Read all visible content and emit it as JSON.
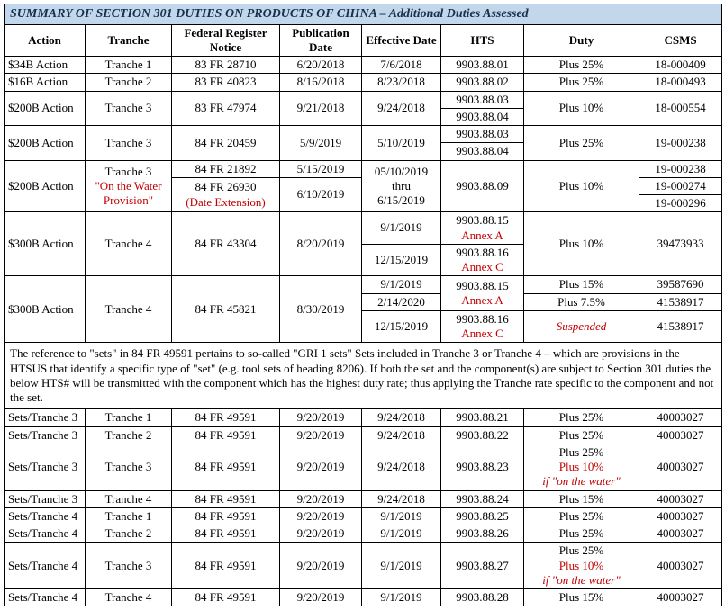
{
  "title": "SUMMARY OF SECTION 301 DUTIES ON PRODUCTS OF CHINA – Additional Duties Assessed",
  "headers": {
    "action": "Action",
    "tranche": "Tranche",
    "frn": "Federal Register Notice",
    "pub": "Publication Date",
    "eff": "Effective Date",
    "hts": "HTS",
    "duty": "Duty",
    "csms": "CSMS"
  },
  "r1": {
    "action": "$34B Action",
    "tranche": "Tranche 1",
    "frn": "83 FR 28710",
    "pub": "6/20/2018",
    "eff": "7/6/2018",
    "hts": "9903.88.01",
    "duty": "Plus 25%",
    "csms": "18-000409"
  },
  "r2": {
    "action": "$16B Action",
    "tranche": "Tranche 2",
    "frn": "83 FR 40823",
    "pub": "8/16/2018",
    "eff": "8/23/2018",
    "hts": "9903.88.02",
    "duty": "Plus 25%",
    "csms": "18-000493"
  },
  "r3": {
    "action": "$200B Action",
    "tranche": "Tranche 3",
    "frn": "83 FR 47974",
    "pub": "9/21/2018",
    "eff": "9/24/2018",
    "hts1": "9903.88.03",
    "hts2": "9903.88.04",
    "duty": "Plus 10%",
    "csms": "18-000554"
  },
  "r4": {
    "action": "$200B Action",
    "tranche": "Tranche 3",
    "frn": "84 FR 20459",
    "pub": "5/9/2019",
    "eff": "5/10/2019",
    "hts1": "9903.88.03",
    "hts2": "9903.88.04",
    "duty": "Plus 25%",
    "csms": "19-000238"
  },
  "r5": {
    "action": "$200B Action",
    "tranche_line1": "Tranche 3",
    "tranche_line2": "\"On the Water Provision\"",
    "frn1": "84 FR 21892",
    "pub1": "5/15/2019",
    "frn2a": "84 FR 26930",
    "frn2b": "(Date Extension)",
    "pub2": "6/10/2019",
    "eff_a": "05/10/2019",
    "eff_b": "thru",
    "eff_c": "6/15/2019",
    "hts": "9903.88.09",
    "duty": "Plus 10%",
    "csms1": "19-000238",
    "csms2": "19-000274",
    "csms3": "19-000296"
  },
  "r6": {
    "action": "$300B Action",
    "tranche": "Tranche 4",
    "frn": "84 FR 43304",
    "pub": "8/20/2019",
    "eff1": "9/1/2019",
    "hts1a": "9903.88.15",
    "hts1b": "Annex A",
    "eff2": "12/15/2019",
    "hts2a": "9903.88.16",
    "hts2b": "Annex C",
    "duty": "Plus 10%",
    "csms": "39473933"
  },
  "r7": {
    "action": "$300B Action",
    "tranche": "Tranche 4",
    "frn": "84 FR 45821",
    "pub": "8/30/2019",
    "eff1": "9/1/2019",
    "hts1a": "9903.88.15",
    "hts1b": "Annex A",
    "duty1": "Plus 15%",
    "csms1": "39587690",
    "eff2": "2/14/2020",
    "duty2": "Plus 7.5%",
    "csms2": "41538917",
    "eff3": "12/15/2019",
    "hts3a": "9903.88.16",
    "hts3b": "Annex C",
    "duty3": "Suspended",
    "csms3": "41538917"
  },
  "note": "The reference to \"sets\" in 84 FR 49591 pertains to so-called \"GRI 1 sets\" Sets included in Tranche 3 or Tranche 4 – which are provisions in the HTSUS that identify a specific type of \"set\" (e.g. tool sets of heading 8206).  If both the set and the component(s) are subject to Section 301 duties the below HTS# will be transmitted with the component which has the highest duty rate; thus applying the Tranche rate specific to the component and not the set.",
  "s1": {
    "action": "Sets/Tranche 3",
    "tranche": "Tranche 1",
    "frn": "84 FR 49591",
    "pub": "9/20/2019",
    "eff": "9/24/2018",
    "hts": "9903.88.21",
    "duty": "Plus 25%",
    "csms": "40003027"
  },
  "s2": {
    "action": "Sets/Tranche 3",
    "tranche": "Tranche 2",
    "frn": "84 FR 49591",
    "pub": "9/20/2019",
    "eff": "9/24/2018",
    "hts": "9903.88.22",
    "duty": "Plus 25%",
    "csms": "40003027"
  },
  "s3": {
    "action": "Sets/Tranche 3",
    "tranche": "Tranche 3",
    "frn": "84 FR 49591",
    "pub": "9/20/2019",
    "eff": "9/24/2018",
    "hts": "9903.88.23",
    "duty1": "Plus 25%",
    "duty2": "Plus 10%",
    "duty3": "if \"on the water\"",
    "csms": "40003027"
  },
  "s4": {
    "action": "Sets/Tranche 3",
    "tranche": "Tranche 4",
    "frn": "84 FR 49591",
    "pub": "9/20/2019",
    "eff": "9/24/2018",
    "hts": "9903.88.24",
    "duty": "Plus 15%",
    "csms": "40003027"
  },
  "s5": {
    "action": "Sets/Tranche 4",
    "tranche": "Tranche 1",
    "frn": "84 FR 49591",
    "pub": "9/20/2019",
    "eff": "9/1/2019",
    "hts": "9903.88.25",
    "duty": "Plus 25%",
    "csms": "40003027"
  },
  "s6": {
    "action": "Sets/Tranche 4",
    "tranche": "Tranche 2",
    "frn": "84 FR 49591",
    "pub": "9/20/2019",
    "eff": "9/1/2019",
    "hts": "9903.88.26",
    "duty": "Plus 25%",
    "csms": "40003027"
  },
  "s7": {
    "action": "Sets/Tranche 4",
    "tranche": "Tranche 3",
    "frn": "84 FR 49591",
    "pub": "9/20/2019",
    "eff": "9/1/2019",
    "hts": "9903.88.27",
    "duty1": "Plus 25%",
    "duty2": "Plus 10%",
    "duty3": "if \"on the water\"",
    "csms": "40003027"
  },
  "s8": {
    "action": "Sets/Tranche 4",
    "tranche": "Tranche 4",
    "frn": "84 FR 49591",
    "pub": "9/20/2019",
    "eff": "9/1/2019",
    "hts": "9903.88.28",
    "duty": "Plus 15%",
    "csms": "40003027"
  }
}
